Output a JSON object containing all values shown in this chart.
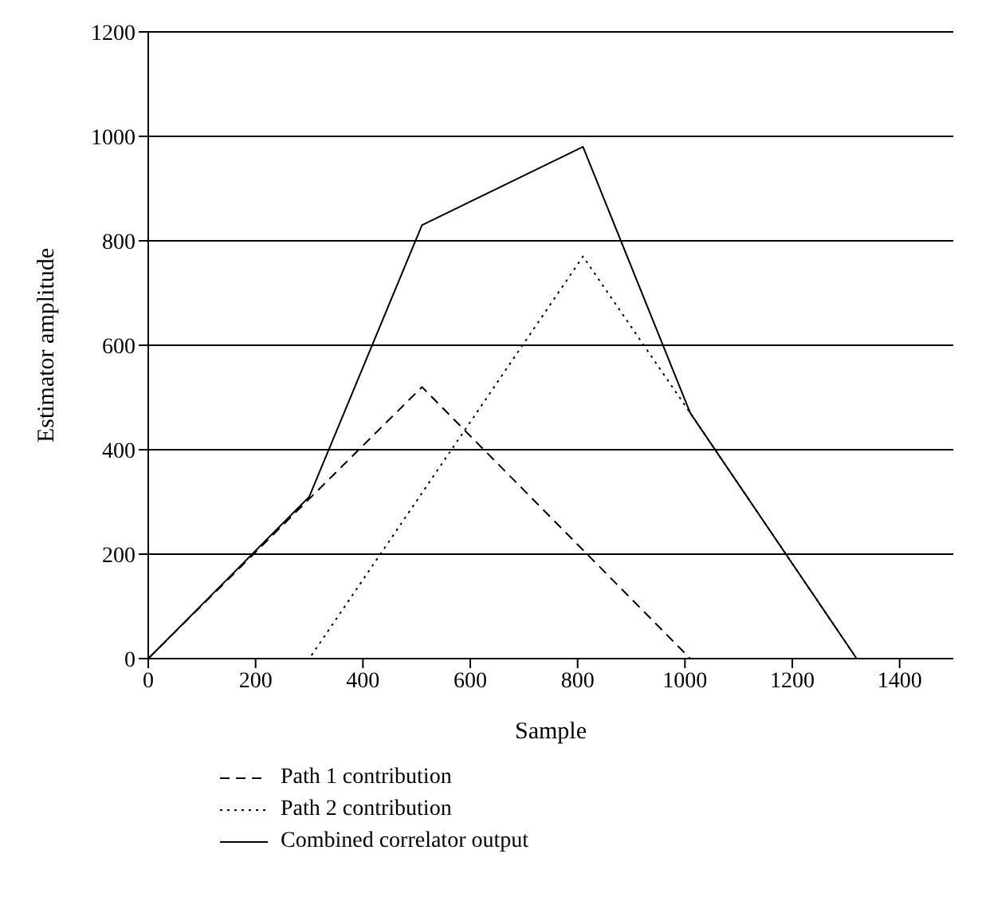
{
  "chart_data": {
    "type": "line",
    "xlabel": "Sample",
    "ylabel": "Estimator amplitude",
    "xlim": [
      0,
      1500
    ],
    "xticks": [
      0,
      200,
      400,
      600,
      800,
      1000,
      1200,
      1400
    ],
    "ylim": [
      0,
      1200
    ],
    "yticks": [
      0,
      200,
      400,
      600,
      800,
      1000,
      1200
    ],
    "grid": "y",
    "legend": "bottom",
    "marker": "none",
    "series": [
      {
        "name": "Path 1 contribution",
        "color": "#000000",
        "line_style": "dashed",
        "x": [
          0,
          510,
          1010,
          1500
        ],
        "values": [
          0,
          520,
          0,
          0
        ]
      },
      {
        "name": "Path 2 contribution",
        "color": "#000000",
        "line_style": "dotted",
        "x": [
          0,
          300,
          810,
          1010,
          1320,
          1500
        ],
        "values": [
          0,
          0,
          770,
          470,
          0,
          0
        ]
      },
      {
        "name": "Combined correlator output",
        "color": "#000000",
        "line_style": "solid",
        "x": [
          0,
          300,
          510,
          810,
          1010,
          1320,
          1500
        ],
        "values": [
          0,
          310,
          830,
          980,
          470,
          0,
          0
        ]
      }
    ]
  }
}
